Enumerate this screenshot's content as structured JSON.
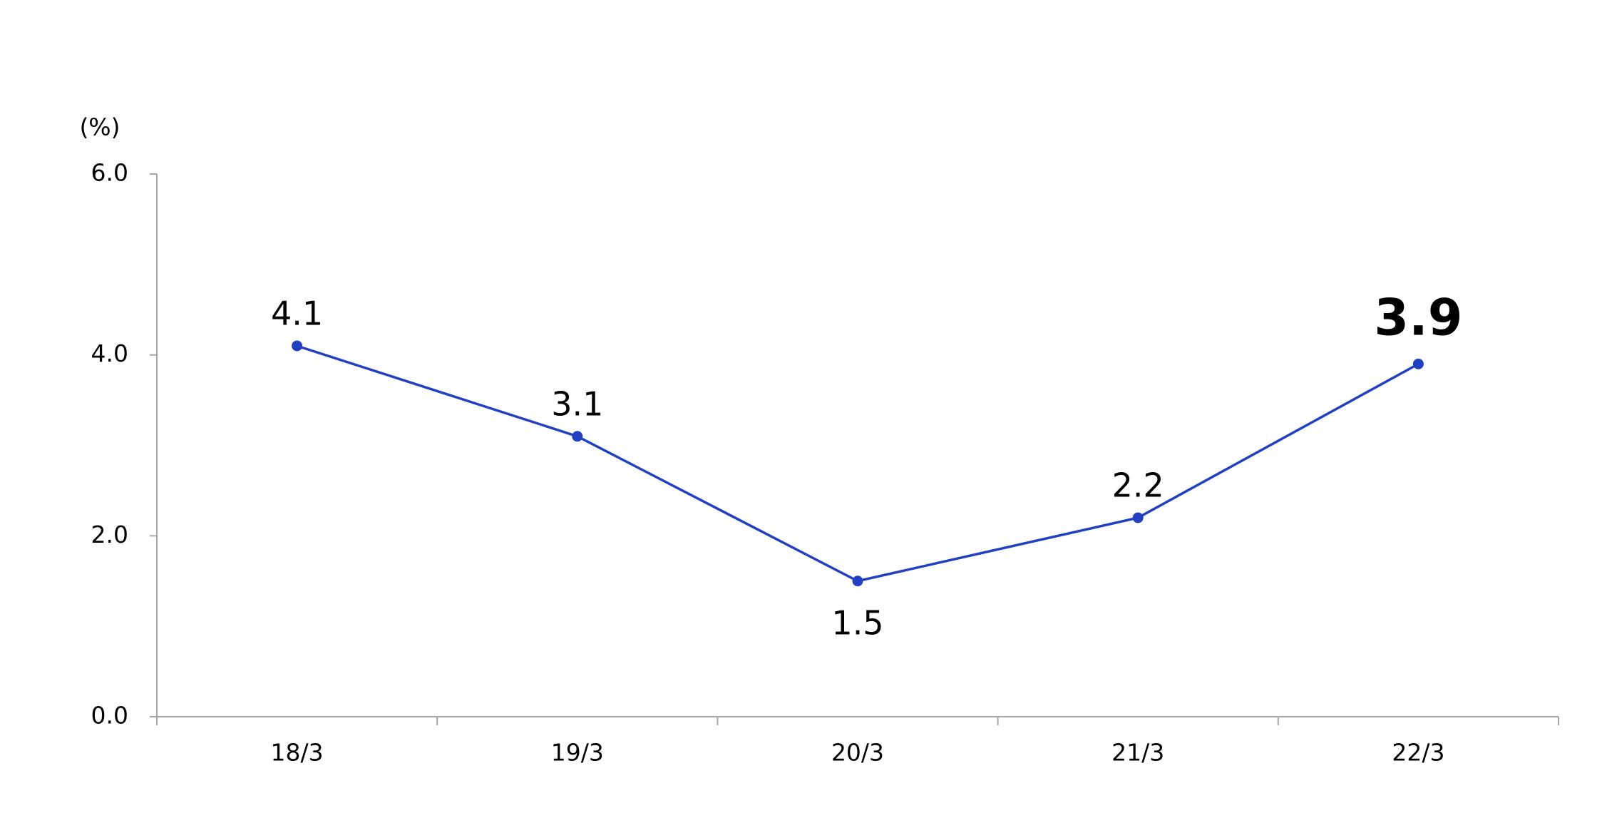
{
  "chart_data": {
    "type": "line",
    "y_label": "(%)",
    "categories": [
      "18/3",
      "19/3",
      "20/3",
      "21/3",
      "22/3"
    ],
    "series": [
      {
        "color": "#2340c0",
        "values": [
          4.1,
          3.1,
          1.5,
          2.2,
          3.9
        ]
      }
    ],
    "label_positions": [
      "above",
      "above",
      "below",
      "above",
      "above"
    ],
    "bold_index": 4,
    "ylim": [
      0,
      6
    ],
    "yticks": [
      {
        "value": 0,
        "label": "0.0"
      },
      {
        "value": 2,
        "label": "2.0"
      },
      {
        "value": 4,
        "label": "4.0"
      },
      {
        "value": 6,
        "label": "6.0"
      }
    ],
    "grid": false
  }
}
